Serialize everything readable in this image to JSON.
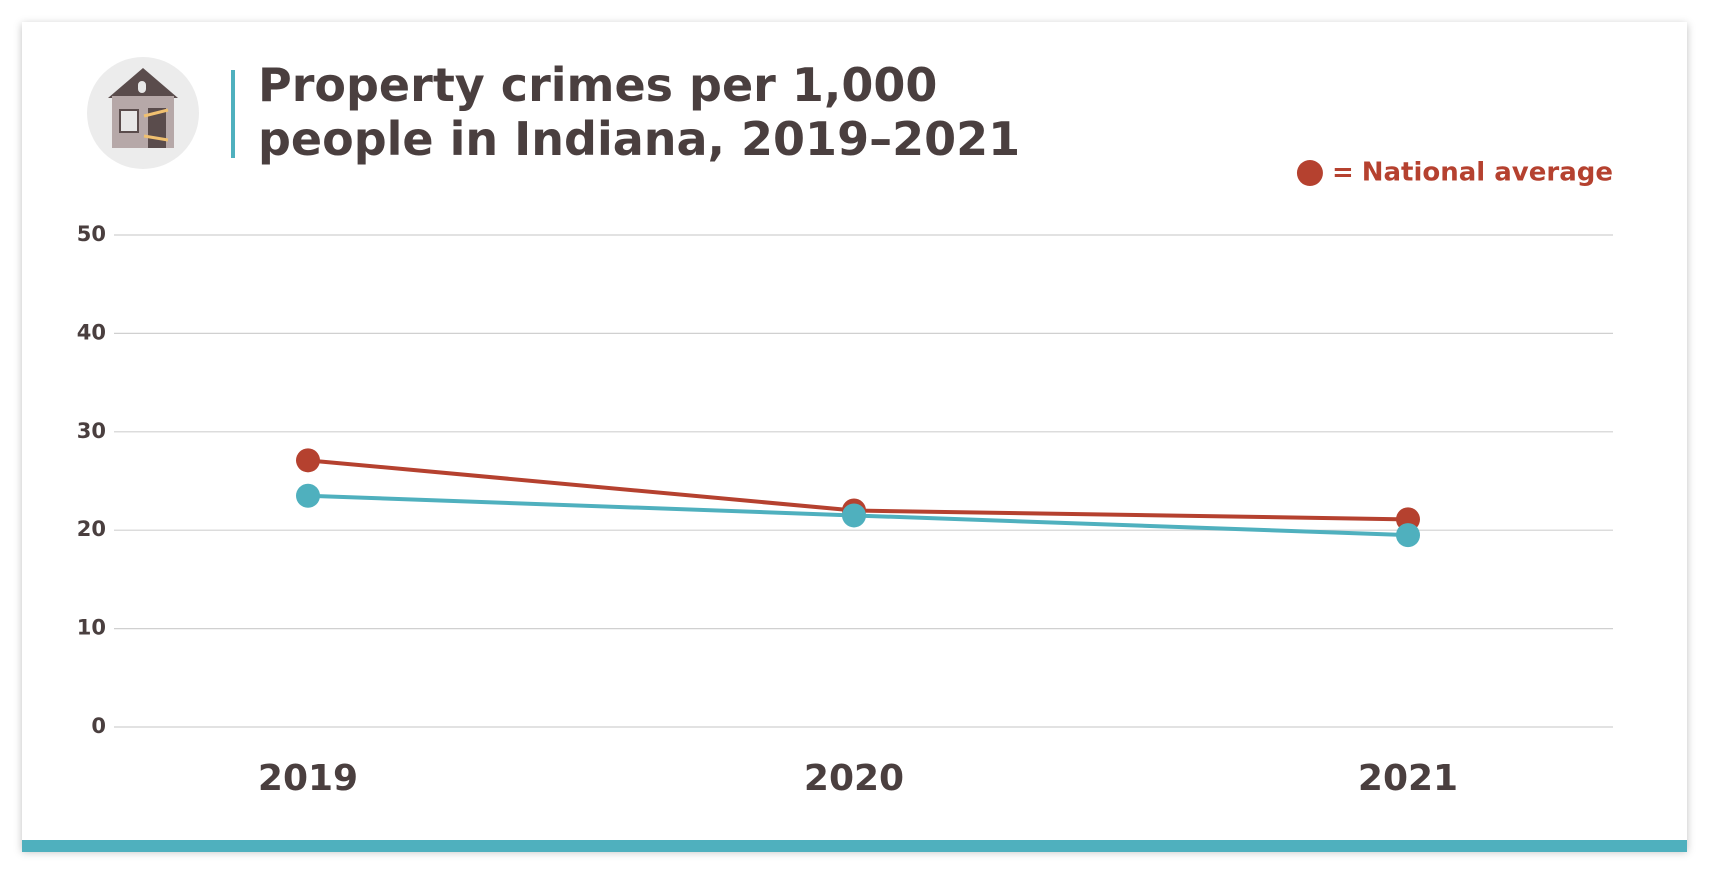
{
  "chart_data": {
    "type": "line",
    "title": "Property crimes per 1,000 people in Indiana, 2019–2021",
    "categories": [
      "2019",
      "2020",
      "2021"
    ],
    "series": [
      {
        "name": "National average",
        "color": "#b5412f",
        "values": [
          27.1,
          22,
          21.1
        ]
      },
      {
        "color": "#4fb0be",
        "values": [
          23.5,
          21.5,
          19.5
        ]
      }
    ],
    "legend_prefix": "=",
    "ylim": [
      0,
      50
    ],
    "yticks": [
      0,
      10,
      20,
      30,
      40,
      50
    ],
    "grid": true
  }
}
